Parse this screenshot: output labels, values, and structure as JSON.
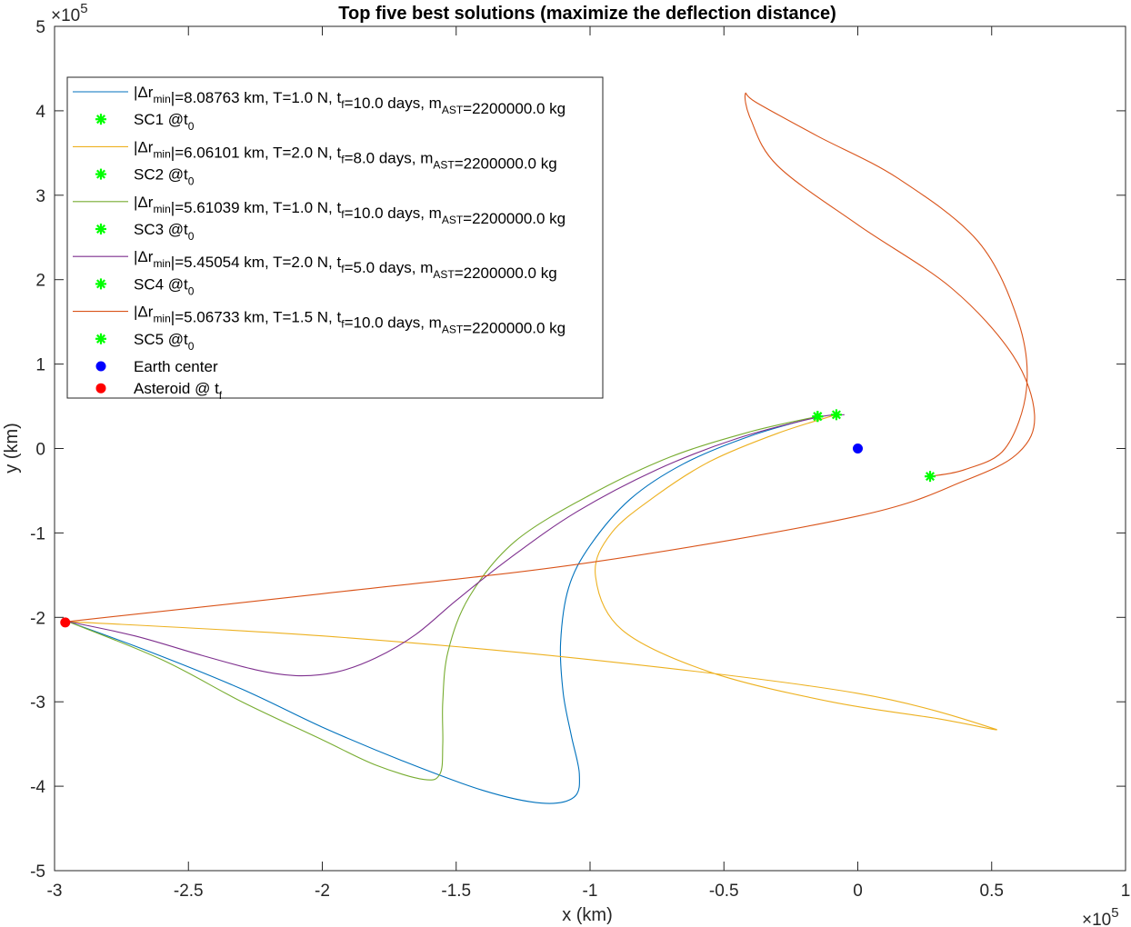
{
  "chart_data": {
    "type": "line",
    "title": "Top five best solutions (maximize the deflection distance)",
    "xlabel": "x (km)",
    "ylabel": "y (km)",
    "x_exponent": "×10",
    "x_exponent_power": "5",
    "y_exponent": "×10",
    "y_exponent_power": "5",
    "xlim": [
      -300000,
      100000
    ],
    "ylim": [
      -500000,
      500000
    ],
    "xticks": [
      -300000,
      -250000,
      -200000,
      -150000,
      -100000,
      -50000,
      0,
      50000,
      100000
    ],
    "xtick_labels": [
      "-3",
      "-2.5",
      "-2",
      "-1.5",
      "-1",
      "-0.5",
      "0",
      "0.5",
      "1"
    ],
    "yticks": [
      -500000,
      -400000,
      -300000,
      -200000,
      -100000,
      0,
      100000,
      200000,
      300000,
      400000,
      500000
    ],
    "ytick_labels": [
      "-5",
      "-4",
      "-3",
      "-2",
      "-1",
      "0",
      "1",
      "2",
      "3",
      "4",
      "5"
    ],
    "grid": false,
    "legend_position": "top-left",
    "series": [
      {
        "name": "|Δr_min|=8.08763 km, T=1.0 N, t_f=10.0 days, m_AST=2200000.0 kg",
        "legend_parts": [
          [
            "|Δr",
            ""
          ],
          [
            "min",
            "sub"
          ],
          [
            "|=8.08763 km, T=1.0 N, t",
            ""
          ],
          [
            "f",
            "sub"
          ],
          [
            "=10.0 days, m",
            ""
          ],
          [
            "AST",
            "sub"
          ],
          [
            "=2200000.0 kg",
            ""
          ]
        ],
        "color": "#0072BD",
        "points": [
          [
            -295000,
            -205000
          ],
          [
            -265000,
            -240000
          ],
          [
            -230000,
            -285000
          ],
          [
            -200000,
            -330000
          ],
          [
            -170000,
            -370000
          ],
          [
            -140000,
            -405000
          ],
          [
            -118000,
            -420000
          ],
          [
            -106000,
            -413000
          ],
          [
            -104000,
            -385000
          ],
          [
            -107000,
            -340000
          ],
          [
            -110000,
            -290000
          ],
          [
            -111000,
            -230000
          ],
          [
            -108000,
            -165000
          ],
          [
            -100000,
            -115000
          ],
          [
            -85000,
            -60000
          ],
          [
            -65000,
            -18000
          ],
          [
            -40000,
            15000
          ],
          [
            -15000,
            38000
          ]
        ],
        "marker": [
          -15000,
          38000
        ]
      },
      {
        "name": "SC1 @t_0",
        "legend_parts": [
          [
            "SC1 @t",
            ""
          ],
          [
            "0",
            "sub"
          ]
        ],
        "color": "#00FF00"
      },
      {
        "name": "|Δr_min|=6.06101 km, T=2.0 N, t_f=8.0 days, m_AST=2200000.0 kg",
        "legend_parts": [
          [
            "|Δr",
            ""
          ],
          [
            "min",
            "sub"
          ],
          [
            "|=6.06101 km, T=2.0 N, t",
            ""
          ],
          [
            "f",
            "sub"
          ],
          [
            "=8.0 days, m",
            ""
          ],
          [
            "AST",
            "sub"
          ],
          [
            "=2200000.0 kg",
            ""
          ]
        ],
        "color": "#EDB120",
        "points": [
          [
            -295000,
            -205000
          ],
          [
            -200000,
            -222000
          ],
          [
            -100000,
            -250000
          ],
          [
            0,
            -290000
          ],
          [
            51000,
            -332000
          ],
          [
            30000,
            -320000
          ],
          [
            -10000,
            -300000
          ],
          [
            -55000,
            -265000
          ],
          [
            -88000,
            -215000
          ],
          [
            -98000,
            -150000
          ],
          [
            -92000,
            -100000
          ],
          [
            -75000,
            -55000
          ],
          [
            -55000,
            -15000
          ],
          [
            -30000,
            18000
          ],
          [
            -8000,
            40000
          ]
        ],
        "marker": [
          -8000,
          40000
        ]
      },
      {
        "name": "SC2 @t_0",
        "legend_parts": [
          [
            "SC2 @t",
            ""
          ],
          [
            "0",
            "sub"
          ]
        ],
        "color": "#00FF00"
      },
      {
        "name": "|Δr_min|=5.61039 km, T=1.0 N, t_f=10.0 days, m_AST=2200000.0 kg",
        "legend_parts": [
          [
            "|Δr",
            ""
          ],
          [
            "min",
            "sub"
          ],
          [
            "|=5.61039 km, T=1.0 N, t",
            ""
          ],
          [
            "f",
            "sub"
          ],
          [
            "=10.0 days, m",
            ""
          ],
          [
            "AST",
            "sub"
          ],
          [
            "=2200000.0 kg",
            ""
          ]
        ],
        "color": "#77AC30",
        "points": [
          [
            -295000,
            -205000
          ],
          [
            -260000,
            -250000
          ],
          [
            -230000,
            -300000
          ],
          [
            -200000,
            -345000
          ],
          [
            -180000,
            -375000
          ],
          [
            -162000,
            -392000
          ],
          [
            -156000,
            -385000
          ],
          [
            -155000,
            -350000
          ],
          [
            -155000,
            -300000
          ],
          [
            -153000,
            -240000
          ],
          [
            -145000,
            -175000
          ],
          [
            -128000,
            -110000
          ],
          [
            -100000,
            -55000
          ],
          [
            -70000,
            -10000
          ],
          [
            -40000,
            20000
          ],
          [
            -15000,
            38000
          ]
        ],
        "marker": [
          -15000,
          38000
        ]
      },
      {
        "name": "SC3 @t_0",
        "legend_parts": [
          [
            "SC3 @t",
            ""
          ],
          [
            "0",
            "sub"
          ]
        ],
        "color": "#00FF00"
      },
      {
        "name": "|Δr_min|=5.45054 km, T=2.0 N, t_f=5.0 days, m_AST=2200000.0 kg",
        "legend_parts": [
          [
            "|Δr",
            ""
          ],
          [
            "min",
            "sub"
          ],
          [
            "|=5.45054 km, T=2.0 N, t",
            ""
          ],
          [
            "f",
            "sub"
          ],
          [
            "=5.0 days, m",
            ""
          ],
          [
            "AST",
            "sub"
          ],
          [
            "=2200000.0 kg",
            ""
          ]
        ],
        "color": "#7E2F8E",
        "points": [
          [
            -295000,
            -205000
          ],
          [
            -270000,
            -222000
          ],
          [
            -245000,
            -245000
          ],
          [
            -225000,
            -262000
          ],
          [
            -210000,
            -269000
          ],
          [
            -195000,
            -265000
          ],
          [
            -180000,
            -248000
          ],
          [
            -165000,
            -220000
          ],
          [
            -150000,
            -180000
          ],
          [
            -130000,
            -130000
          ],
          [
            -105000,
            -75000
          ],
          [
            -75000,
            -25000
          ],
          [
            -45000,
            12000
          ],
          [
            -15000,
            37000
          ],
          [
            -5000,
            40000
          ]
        ]
      },
      {
        "name": "SC4 @t_0",
        "legend_parts": [
          [
            "SC4 @t",
            ""
          ],
          [
            "0",
            "sub"
          ]
        ],
        "color": "#00FF00"
      },
      {
        "name": "|Δr_min|=5.06733 km, T=1.5 N, t_f=10.0 days, m_AST=2200000.0 kg",
        "legend_parts": [
          [
            "|Δr",
            ""
          ],
          [
            "min",
            "sub"
          ],
          [
            "|=5.06733 km, T=1.5 N, t",
            ""
          ],
          [
            "f",
            "sub"
          ],
          [
            "=10.0 days, m",
            ""
          ],
          [
            "AST",
            "sub"
          ],
          [
            "=2200000.0 kg",
            ""
          ]
        ],
        "color": "#D95319",
        "points": [
          [
            -295000,
            -205000
          ],
          [
            -200000,
            -172000
          ],
          [
            -100000,
            -135000
          ],
          [
            0,
            -80000
          ],
          [
            40000,
            -38000
          ],
          [
            60000,
            -5000
          ],
          [
            66000,
            40000
          ],
          [
            58000,
            110000
          ],
          [
            35000,
            190000
          ],
          [
            0,
            265000
          ],
          [
            -30000,
            335000
          ],
          [
            -40000,
            390000
          ],
          [
            -42000,
            420000
          ],
          [
            -38000,
            410000
          ],
          [
            -15000,
            370000
          ],
          [
            15000,
            320000
          ],
          [
            45000,
            245000
          ],
          [
            60000,
            150000
          ],
          [
            63000,
            70000
          ],
          [
            55000,
            0
          ],
          [
            40000,
            -25000
          ],
          [
            27000,
            -33000
          ]
        ],
        "marker": [
          27000,
          -33000
        ]
      },
      {
        "name": "SC5 @t_0",
        "legend_parts": [
          [
            "SC5 @t",
            ""
          ],
          [
            "0",
            "sub"
          ]
        ],
        "color": "#00FF00"
      }
    ],
    "earth_center": {
      "name": "Earth center",
      "legend_parts": [
        [
          "Earth center",
          ""
        ]
      ],
      "color": "#0000FF",
      "x": 0,
      "y": 0
    },
    "asteroid": {
      "name": "Asteroid @ t_f",
      "legend_parts": [
        [
          "Asteroid @ t",
          ""
        ],
        [
          "f",
          "sub"
        ]
      ],
      "color": "#FF0000",
      "x": -296000,
      "y": -206000
    }
  }
}
